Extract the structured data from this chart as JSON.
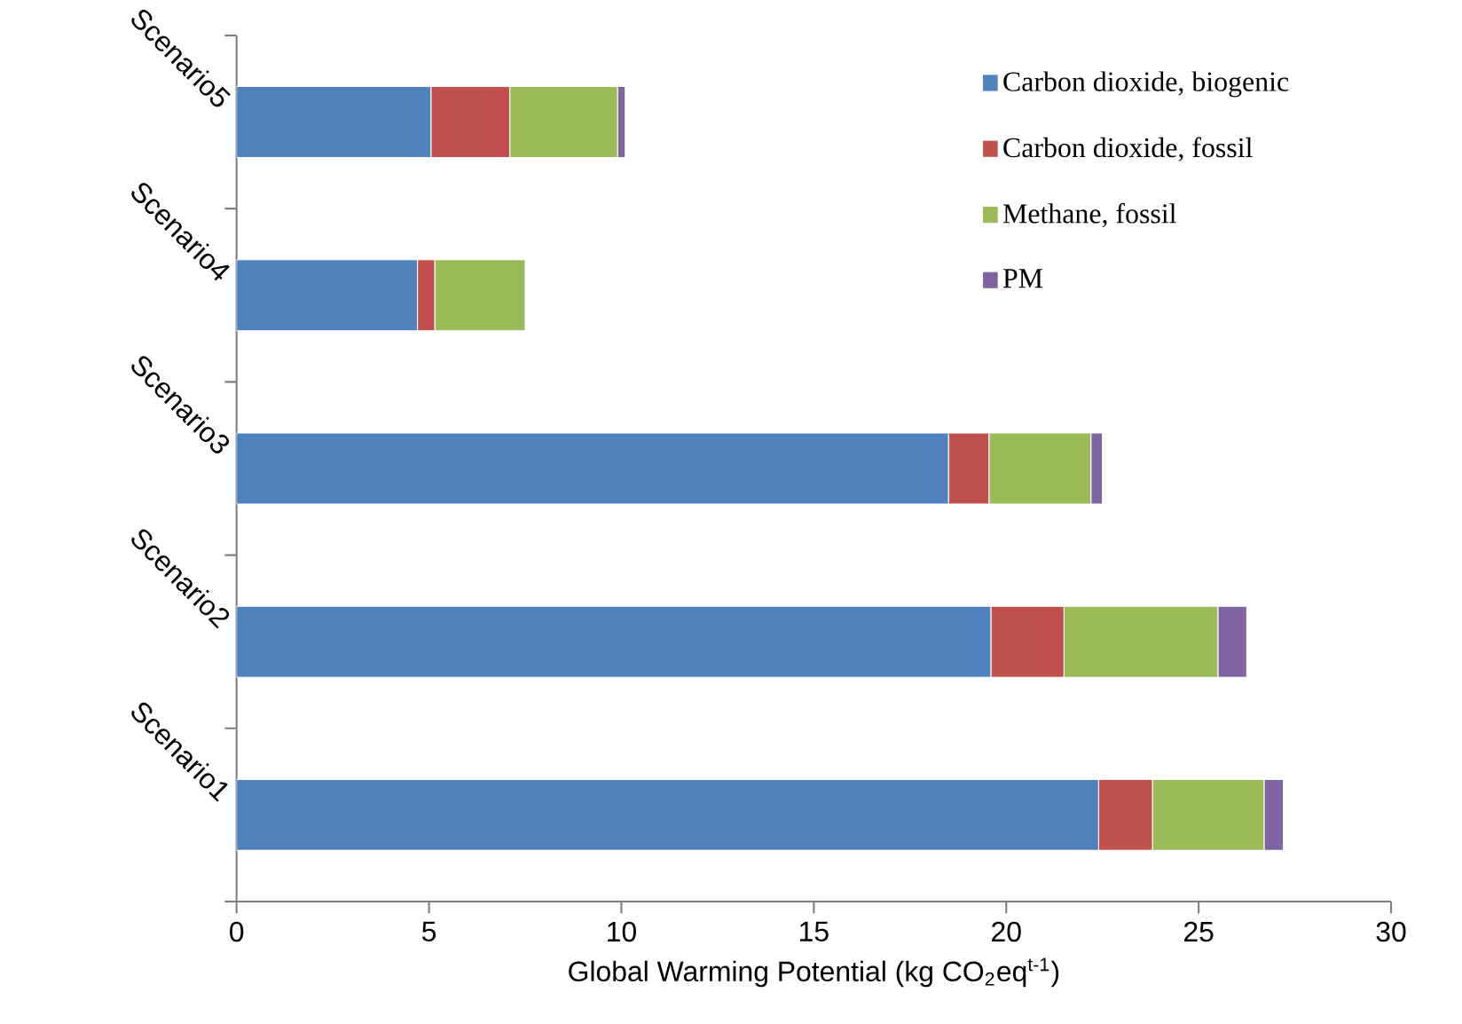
{
  "chart_data": {
    "type": "bar",
    "orientation": "horizontal",
    "stacked": true,
    "xlabel": "Global Warming Potential (kg CO$_{2}$eq$^{t-1}$)",
    "categories": [
      "Scenario5",
      "Scenario4",
      "Scenario3",
      "Scenario2",
      "Scenario1"
    ],
    "series": [
      {
        "name": "Carbon dioxide, biogenic",
        "color": "#4f81bd",
        "values": [
          5.05,
          4.7,
          18.5,
          19.6,
          22.4
        ]
      },
      {
        "name": "Carbon dioxide, fossil",
        "color": "#c0504d",
        "values": [
          2.05,
          0.45,
          1.05,
          1.9,
          1.4
        ]
      },
      {
        "name": "Methane, fossil",
        "color": "#9bbb59",
        "values": [
          2.8,
          2.35,
          2.65,
          4.0,
          2.9
        ]
      },
      {
        "name": "PM",
        "color": "#8064a2",
        "values": [
          0.2,
          0,
          0.3,
          0.75,
          0.5
        ]
      }
    ],
    "xlim": [
      0,
      30
    ],
    "xticks": [
      0,
      5,
      10,
      15,
      20,
      25,
      30
    ],
    "grid": false,
    "legend": "top right"
  }
}
